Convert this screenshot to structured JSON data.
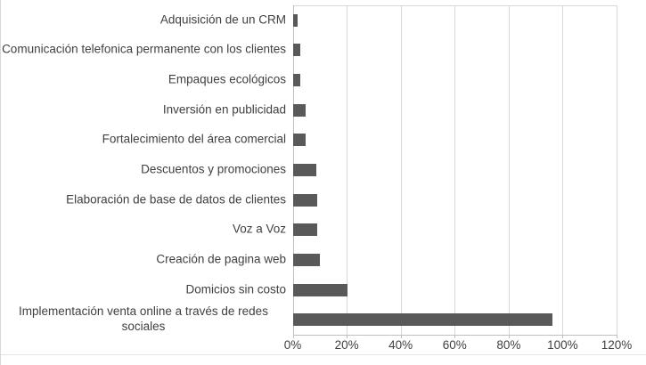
{
  "chart_data": {
    "type": "bar",
    "orientation": "horizontal",
    "title": "",
    "categories": [
      "Adquisición de un CRM",
      "Comunicación telefonica permanente con los clientes",
      "Empaques ecológicos",
      "Inversión en publicidad",
      "Fortalecimiento del área comercial",
      "Descuentos y promociones",
      "Elaboración de base de datos de clientes",
      "Voz a Voz",
      "Creación de pagina web",
      "Domicios sin costo",
      "Implementación venta online a través de redes sociales"
    ],
    "values": [
      1.5,
      2.5,
      2.5,
      4.5,
      4.5,
      8.5,
      9,
      9,
      10,
      20,
      96
    ],
    "value_unit": "%",
    "xlabel": "",
    "ylabel": "",
    "xlim": [
      0,
      120
    ],
    "x_ticks": [
      0,
      20,
      40,
      60,
      80,
      100,
      120
    ],
    "x_tick_labels": [
      "0%",
      "20%",
      "40%",
      "60%",
      "80%",
      "100%",
      "120%"
    ],
    "grid": "vertical-major-on",
    "legend": "none"
  },
  "colors": {
    "bar": "#595959",
    "gridline": "#d9d9d9",
    "axis_line": "#bfbfbf",
    "label_text": "#404040",
    "background": "#ffffff",
    "chart_border": "#d9d9d9"
  }
}
